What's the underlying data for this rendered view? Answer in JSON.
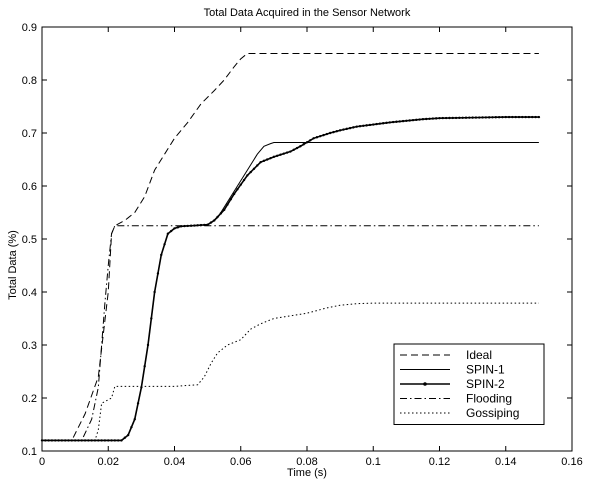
{
  "chart_data": {
    "type": "line",
    "title": "Total Data Acquired in the Sensor Network",
    "xlabel": "Time (s)",
    "ylabel": "Total Data (%)",
    "xlim": [
      0,
      0.16
    ],
    "ylim": [
      0.1,
      0.9
    ],
    "xticks": [
      0,
      0.02,
      0.04,
      0.06,
      0.08,
      0.1,
      0.12,
      0.14,
      0.16
    ],
    "xtick_labels": [
      "0",
      "0.02",
      "0.04",
      "0.06",
      "0.08",
      "0.1",
      "0.12",
      "0.14",
      "0.16"
    ],
    "yticks": [
      0.1,
      0.2,
      0.3,
      0.4,
      0.5,
      0.6,
      0.7,
      0.8,
      0.9
    ],
    "ytick_labels": [
      "0.1",
      "0.2",
      "0.3",
      "0.4",
      "0.5",
      "0.6",
      "0.7",
      "0.8",
      "0.9"
    ],
    "grid": false,
    "legend_position": "bottom-right",
    "series": [
      {
        "name": "Ideal",
        "style": "dashed",
        "color": "#000000",
        "x": [
          0,
          0.009,
          0.013,
          0.017,
          0.02,
          0.021,
          0.022,
          0.025,
          0.028,
          0.031,
          0.034,
          0.037,
          0.04,
          0.044,
          0.048,
          0.052,
          0.055,
          0.058,
          0.06,
          0.062,
          0.064,
          0.07,
          0.08,
          0.1,
          0.12,
          0.15
        ],
        "y": [
          0.12,
          0.12,
          0.17,
          0.24,
          0.4,
          0.51,
          0.525,
          0.535,
          0.55,
          0.58,
          0.63,
          0.66,
          0.69,
          0.72,
          0.755,
          0.78,
          0.8,
          0.825,
          0.84,
          0.85,
          0.85,
          0.85,
          0.85,
          0.85,
          0.85,
          0.85
        ]
      },
      {
        "name": "SPIN-1",
        "style": "solid",
        "color": "#000000",
        "x": [
          0,
          0.024,
          0.026,
          0.028,
          0.03,
          0.032,
          0.034,
          0.036,
          0.038,
          0.04,
          0.042,
          0.045,
          0.05,
          0.053,
          0.056,
          0.059,
          0.062,
          0.065,
          0.067,
          0.069,
          0.07,
          0.08,
          0.1,
          0.12,
          0.15
        ],
        "y": [
          0.12,
          0.12,
          0.13,
          0.16,
          0.22,
          0.3,
          0.4,
          0.47,
          0.51,
          0.52,
          0.524,
          0.525,
          0.527,
          0.54,
          0.57,
          0.6,
          0.63,
          0.66,
          0.675,
          0.68,
          0.682,
          0.682,
          0.682,
          0.682,
          0.682
        ]
      },
      {
        "name": "SPIN-2",
        "style": "solid-dots",
        "color": "#000000",
        "x": [
          0,
          0.024,
          0.026,
          0.028,
          0.03,
          0.032,
          0.034,
          0.036,
          0.038,
          0.04,
          0.042,
          0.045,
          0.05,
          0.052,
          0.055,
          0.058,
          0.062,
          0.066,
          0.07,
          0.075,
          0.078,
          0.082,
          0.087,
          0.09,
          0.095,
          0.1,
          0.105,
          0.11,
          0.115,
          0.12,
          0.13,
          0.14,
          0.15
        ],
        "y": [
          0.12,
          0.12,
          0.13,
          0.16,
          0.22,
          0.3,
          0.4,
          0.47,
          0.51,
          0.52,
          0.524,
          0.525,
          0.527,
          0.535,
          0.555,
          0.585,
          0.62,
          0.645,
          0.655,
          0.665,
          0.675,
          0.69,
          0.7,
          0.705,
          0.712,
          0.716,
          0.72,
          0.723,
          0.726,
          0.728,
          0.729,
          0.73,
          0.73
        ]
      },
      {
        "name": "Flooding",
        "style": "dash-dot",
        "color": "#000000",
        "x": [
          0,
          0.012,
          0.015,
          0.017,
          0.018,
          0.019,
          0.02,
          0.021,
          0.022,
          0.03,
          0.06,
          0.1,
          0.15
        ],
        "y": [
          0.12,
          0.12,
          0.16,
          0.22,
          0.3,
          0.38,
          0.45,
          0.51,
          0.525,
          0.525,
          0.525,
          0.525,
          0.525
        ]
      },
      {
        "name": "Gossiping",
        "style": "dotted",
        "color": "#000000",
        "x": [
          0,
          0.016,
          0.017,
          0.018,
          0.021,
          0.022,
          0.025,
          0.03,
          0.035,
          0.04,
          0.047,
          0.049,
          0.051,
          0.053,
          0.056,
          0.06,
          0.063,
          0.066,
          0.07,
          0.075,
          0.08,
          0.083,
          0.086,
          0.09,
          0.095,
          0.1,
          0.12,
          0.15
        ],
        "y": [
          0.12,
          0.12,
          0.14,
          0.19,
          0.2,
          0.222,
          0.222,
          0.222,
          0.222,
          0.222,
          0.225,
          0.24,
          0.265,
          0.285,
          0.3,
          0.31,
          0.33,
          0.34,
          0.35,
          0.355,
          0.36,
          0.365,
          0.37,
          0.375,
          0.378,
          0.379,
          0.379,
          0.379
        ]
      }
    ]
  }
}
